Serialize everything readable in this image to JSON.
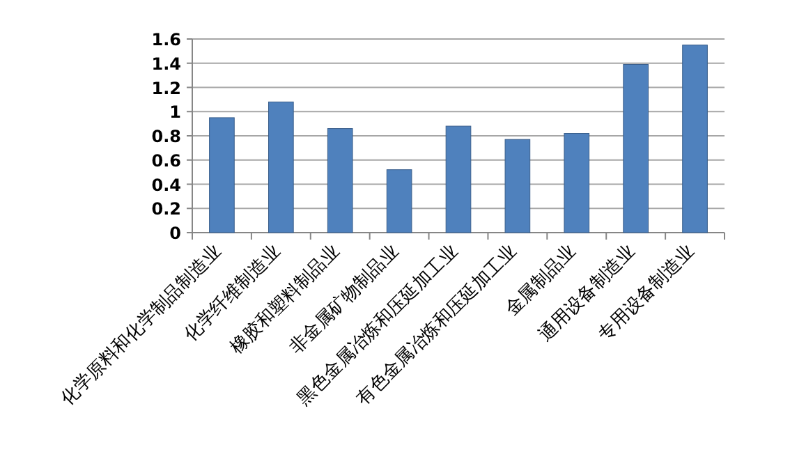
{
  "chart_data": {
    "type": "bar",
    "categories": [
      "化学原料和化学制品制造业",
      "化学纤维制造业",
      "橡胶和塑料制品业",
      "非金属矿物制品业",
      "黑色金属冶炼和压延加工业",
      "有色金属冶炼和压延加工业",
      "金属制品业",
      "通用设备制造业",
      "专用设备制造业"
    ],
    "values": [
      0.95,
      1.08,
      0.86,
      0.52,
      0.88,
      0.77,
      0.82,
      1.39,
      1.55
    ],
    "color": "#4f81bd",
    "ylim": [
      0,
      1.6
    ],
    "yticks": [
      0,
      0.2,
      0.4,
      0.6,
      0.8,
      1,
      1.2,
      1.4,
      1.6
    ],
    "grid": "y"
  }
}
